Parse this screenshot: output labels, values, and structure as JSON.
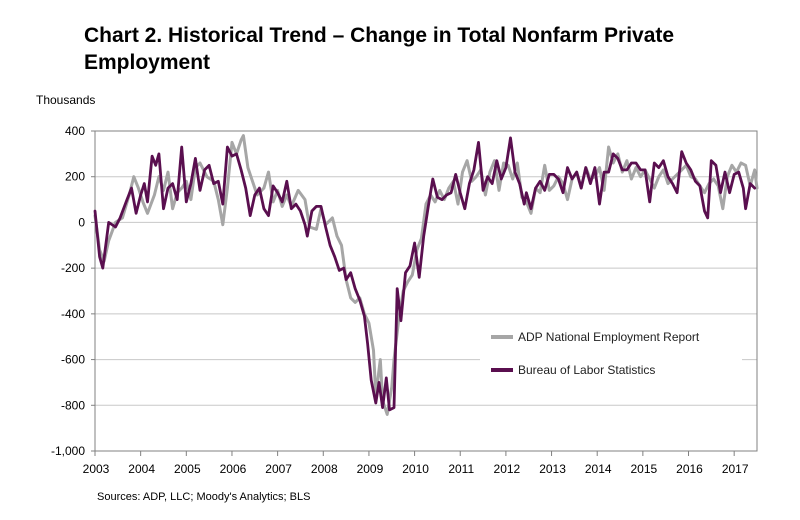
{
  "chart_data": {
    "type": "line",
    "title": "Chart 2. Historical Trend – Change in Total Nonfarm Private Employment",
    "ylabel": "Thousands",
    "xlabel": "",
    "source": "Sources: ADP, LLC; Moody's Analytics; BLS",
    "ylim": [
      -1000,
      400
    ],
    "yticks": [
      400,
      200,
      0,
      -200,
      -400,
      -600,
      -800,
      -1000
    ],
    "ytick_labels": [
      "400",
      "200",
      "0",
      "-200",
      "-400",
      "-600",
      "-800",
      "-1,000"
    ],
    "xlim": [
      2003.0,
      2017.5
    ],
    "xticks": [
      2003,
      2004,
      2005,
      2006,
      2007,
      2008,
      2009,
      2010,
      2011,
      2012,
      2013,
      2014,
      2015,
      2016,
      2017
    ],
    "xtick_labels": [
      "2003",
      "2004",
      "2005",
      "2006",
      "2007",
      "2008",
      "2009",
      "2010",
      "2011",
      "2012",
      "2013",
      "2014",
      "2015",
      "2016",
      "2017"
    ],
    "grid": "horizontal",
    "legend_position": "bottom-right",
    "series": [
      {
        "name": "ADP National Employment Report",
        "color": "#a6a6a6",
        "points": [
          [
            2003.0,
            30
          ],
          [
            2003.1,
            -120
          ],
          [
            2003.2,
            -170
          ],
          [
            2003.3,
            -80
          ],
          [
            2003.45,
            0
          ],
          [
            2003.6,
            20
          ],
          [
            2003.75,
            120
          ],
          [
            2003.85,
            200
          ],
          [
            2003.95,
            150
          ],
          [
            2004.05,
            90
          ],
          [
            2004.15,
            40
          ],
          [
            2004.3,
            120
          ],
          [
            2004.4,
            200
          ],
          [
            2004.5,
            140
          ],
          [
            2004.6,
            220
          ],
          [
            2004.7,
            60
          ],
          [
            2004.8,
            130
          ],
          [
            2004.9,
            150
          ],
          [
            2005.0,
            180
          ],
          [
            2005.1,
            100
          ],
          [
            2005.2,
            240
          ],
          [
            2005.3,
            260
          ],
          [
            2005.45,
            200
          ],
          [
            2005.6,
            180
          ],
          [
            2005.7,
            100
          ],
          [
            2005.8,
            -10
          ],
          [
            2005.9,
            150
          ],
          [
            2006.0,
            350
          ],
          [
            2006.1,
            300
          ],
          [
            2006.2,
            360
          ],
          [
            2006.25,
            380
          ],
          [
            2006.35,
            240
          ],
          [
            2006.45,
            180
          ],
          [
            2006.55,
            120
          ],
          [
            2006.7,
            150
          ],
          [
            2006.8,
            220
          ],
          [
            2006.9,
            90
          ],
          [
            2007.0,
            140
          ],
          [
            2007.1,
            70
          ],
          [
            2007.2,
            120
          ],
          [
            2007.3,
            70
          ],
          [
            2007.45,
            140
          ],
          [
            2007.6,
            100
          ],
          [
            2007.7,
            -20
          ],
          [
            2007.85,
            -30
          ],
          [
            2007.95,
            60
          ],
          [
            2008.05,
            -10
          ],
          [
            2008.2,
            20
          ],
          [
            2008.3,
            -60
          ],
          [
            2008.4,
            -100
          ],
          [
            2008.5,
            -250
          ],
          [
            2008.6,
            -330
          ],
          [
            2008.7,
            -350
          ],
          [
            2008.8,
            -330
          ],
          [
            2008.9,
            -400
          ],
          [
            2009.0,
            -440
          ],
          [
            2009.1,
            -560
          ],
          [
            2009.15,
            -760
          ],
          [
            2009.25,
            -600
          ],
          [
            2009.3,
            -780
          ],
          [
            2009.4,
            -840
          ],
          [
            2009.5,
            -720
          ],
          [
            2009.55,
            -600
          ],
          [
            2009.65,
            -430
          ],
          [
            2009.75,
            -300
          ],
          [
            2009.85,
            -260
          ],
          [
            2009.95,
            -230
          ],
          [
            2010.05,
            -120
          ],
          [
            2010.15,
            -70
          ],
          [
            2010.25,
            80
          ],
          [
            2010.35,
            120
          ],
          [
            2010.45,
            90
          ],
          [
            2010.55,
            140
          ],
          [
            2010.65,
            100
          ],
          [
            2010.75,
            150
          ],
          [
            2010.85,
            180
          ],
          [
            2010.95,
            80
          ],
          [
            2011.05,
            220
          ],
          [
            2011.15,
            270
          ],
          [
            2011.25,
            180
          ],
          [
            2011.35,
            200
          ],
          [
            2011.45,
            230
          ],
          [
            2011.55,
            120
          ],
          [
            2011.65,
            220
          ],
          [
            2011.75,
            270
          ],
          [
            2011.85,
            140
          ],
          [
            2011.95,
            260
          ],
          [
            2012.05,
            250
          ],
          [
            2012.15,
            190
          ],
          [
            2012.25,
            260
          ],
          [
            2012.35,
            110
          ],
          [
            2012.45,
            90
          ],
          [
            2012.55,
            40
          ],
          [
            2012.65,
            150
          ],
          [
            2012.75,
            130
          ],
          [
            2012.85,
            250
          ],
          [
            2012.95,
            140
          ],
          [
            2013.05,
            160
          ],
          [
            2013.15,
            200
          ],
          [
            2013.25,
            170
          ],
          [
            2013.35,
            100
          ],
          [
            2013.45,
            190
          ],
          [
            2013.55,
            220
          ],
          [
            2013.65,
            150
          ],
          [
            2013.75,
            240
          ],
          [
            2013.85,
            190
          ],
          [
            2013.95,
            200
          ],
          [
            2014.05,
            240
          ],
          [
            2014.15,
            140
          ],
          [
            2014.25,
            330
          ],
          [
            2014.35,
            260
          ],
          [
            2014.45,
            300
          ],
          [
            2014.55,
            220
          ],
          [
            2014.65,
            270
          ],
          [
            2014.75,
            190
          ],
          [
            2014.85,
            240
          ],
          [
            2014.95,
            200
          ],
          [
            2015.05,
            230
          ],
          [
            2015.15,
            190
          ],
          [
            2015.25,
            150
          ],
          [
            2015.35,
            200
          ],
          [
            2015.45,
            230
          ],
          [
            2015.55,
            170
          ],
          [
            2015.65,
            190
          ],
          [
            2015.75,
            210
          ],
          [
            2015.85,
            230
          ],
          [
            2015.95,
            250
          ],
          [
            2016.05,
            200
          ],
          [
            2016.15,
            190
          ],
          [
            2016.25,
            160
          ],
          [
            2016.35,
            130
          ],
          [
            2016.45,
            170
          ],
          [
            2016.55,
            190
          ],
          [
            2016.65,
            160
          ],
          [
            2016.75,
            60
          ],
          [
            2016.85,
            200
          ],
          [
            2016.95,
            250
          ],
          [
            2017.05,
            220
          ],
          [
            2017.15,
            260
          ],
          [
            2017.25,
            250
          ],
          [
            2017.35,
            160
          ],
          [
            2017.45,
            230
          ],
          [
            2017.5,
            150
          ]
        ]
      },
      {
        "name": "Bureau of Labor Statistics",
        "color": "#5a0f4f",
        "points": [
          [
            2003.0,
            50
          ],
          [
            2003.05,
            -50
          ],
          [
            2003.1,
            -150
          ],
          [
            2003.17,
            -200
          ],
          [
            2003.3,
            0
          ],
          [
            2003.45,
            -20
          ],
          [
            2003.55,
            20
          ],
          [
            2003.7,
            100
          ],
          [
            2003.8,
            150
          ],
          [
            2003.9,
            40
          ],
          [
            2004.0,
            120
          ],
          [
            2004.08,
            170
          ],
          [
            2004.15,
            90
          ],
          [
            2004.25,
            290
          ],
          [
            2004.33,
            250
          ],
          [
            2004.4,
            300
          ],
          [
            2004.5,
            60
          ],
          [
            2004.6,
            150
          ],
          [
            2004.7,
            170
          ],
          [
            2004.8,
            100
          ],
          [
            2004.9,
            330
          ],
          [
            2005.0,
            90
          ],
          [
            2005.1,
            170
          ],
          [
            2005.2,
            280
          ],
          [
            2005.3,
            140
          ],
          [
            2005.4,
            230
          ],
          [
            2005.5,
            250
          ],
          [
            2005.6,
            170
          ],
          [
            2005.7,
            180
          ],
          [
            2005.8,
            80
          ],
          [
            2005.9,
            330
          ],
          [
            2006.0,
            290
          ],
          [
            2006.1,
            300
          ],
          [
            2006.2,
            230
          ],
          [
            2006.3,
            150
          ],
          [
            2006.4,
            30
          ],
          [
            2006.5,
            120
          ],
          [
            2006.6,
            150
          ],
          [
            2006.7,
            60
          ],
          [
            2006.8,
            30
          ],
          [
            2006.9,
            160
          ],
          [
            2007.0,
            130
          ],
          [
            2007.1,
            90
          ],
          [
            2007.2,
            180
          ],
          [
            2007.3,
            60
          ],
          [
            2007.4,
            80
          ],
          [
            2007.5,
            50
          ],
          [
            2007.6,
            -10
          ],
          [
            2007.65,
            -60
          ],
          [
            2007.75,
            50
          ],
          [
            2007.85,
            70
          ],
          [
            2007.95,
            70
          ],
          [
            2008.05,
            -20
          ],
          [
            2008.15,
            -100
          ],
          [
            2008.25,
            -150
          ],
          [
            2008.35,
            -210
          ],
          [
            2008.45,
            -200
          ],
          [
            2008.5,
            -250
          ],
          [
            2008.6,
            -220
          ],
          [
            2008.7,
            -290
          ],
          [
            2008.8,
            -340
          ],
          [
            2008.9,
            -410
          ],
          [
            2008.97,
            -530
          ],
          [
            2009.05,
            -690
          ],
          [
            2009.15,
            -790
          ],
          [
            2009.22,
            -700
          ],
          [
            2009.3,
            -810
          ],
          [
            2009.38,
            -680
          ],
          [
            2009.45,
            -820
          ],
          [
            2009.55,
            -810
          ],
          [
            2009.62,
            -290
          ],
          [
            2009.7,
            -430
          ],
          [
            2009.8,
            -220
          ],
          [
            2009.9,
            -190
          ],
          [
            2010.0,
            -90
          ],
          [
            2010.1,
            -240
          ],
          [
            2010.2,
            -60
          ],
          [
            2010.3,
            70
          ],
          [
            2010.4,
            190
          ],
          [
            2010.5,
            110
          ],
          [
            2010.6,
            100
          ],
          [
            2010.7,
            120
          ],
          [
            2010.8,
            130
          ],
          [
            2010.9,
            210
          ],
          [
            2011.0,
            130
          ],
          [
            2011.1,
            60
          ],
          [
            2011.2,
            170
          ],
          [
            2011.3,
            230
          ],
          [
            2011.4,
            350
          ],
          [
            2011.5,
            140
          ],
          [
            2011.6,
            200
          ],
          [
            2011.7,
            170
          ],
          [
            2011.8,
            270
          ],
          [
            2011.9,
            190
          ],
          [
            2012.0,
            240
          ],
          [
            2012.1,
            370
          ],
          [
            2012.2,
            220
          ],
          [
            2012.3,
            170
          ],
          [
            2012.4,
            80
          ],
          [
            2012.45,
            130
          ],
          [
            2012.55,
            60
          ],
          [
            2012.65,
            150
          ],
          [
            2012.75,
            180
          ],
          [
            2012.85,
            140
          ],
          [
            2012.95,
            210
          ],
          [
            2013.05,
            210
          ],
          [
            2013.15,
            190
          ],
          [
            2013.25,
            130
          ],
          [
            2013.35,
            240
          ],
          [
            2013.45,
            190
          ],
          [
            2013.55,
            220
          ],
          [
            2013.65,
            150
          ],
          [
            2013.75,
            240
          ],
          [
            2013.85,
            170
          ],
          [
            2013.95,
            240
          ],
          [
            2014.05,
            80
          ],
          [
            2014.15,
            220
          ],
          [
            2014.25,
            220
          ],
          [
            2014.35,
            300
          ],
          [
            2014.45,
            280
          ],
          [
            2014.55,
            230
          ],
          [
            2014.65,
            230
          ],
          [
            2014.75,
            260
          ],
          [
            2014.85,
            260
          ],
          [
            2014.95,
            230
          ],
          [
            2015.05,
            230
          ],
          [
            2015.15,
            90
          ],
          [
            2015.25,
            260
          ],
          [
            2015.35,
            240
          ],
          [
            2015.45,
            270
          ],
          [
            2015.55,
            200
          ],
          [
            2015.65,
            170
          ],
          [
            2015.75,
            130
          ],
          [
            2015.85,
            310
          ],
          [
            2015.95,
            260
          ],
          [
            2016.05,
            230
          ],
          [
            2016.15,
            180
          ],
          [
            2016.25,
            160
          ],
          [
            2016.35,
            50
          ],
          [
            2016.42,
            20
          ],
          [
            2016.5,
            270
          ],
          [
            2016.6,
            250
          ],
          [
            2016.7,
            130
          ],
          [
            2016.8,
            220
          ],
          [
            2016.9,
            130
          ],
          [
            2017.0,
            210
          ],
          [
            2017.1,
            220
          ],
          [
            2017.2,
            150
          ],
          [
            2017.25,
            60
          ],
          [
            2017.35,
            170
          ],
          [
            2017.45,
            150
          ]
        ]
      }
    ]
  }
}
